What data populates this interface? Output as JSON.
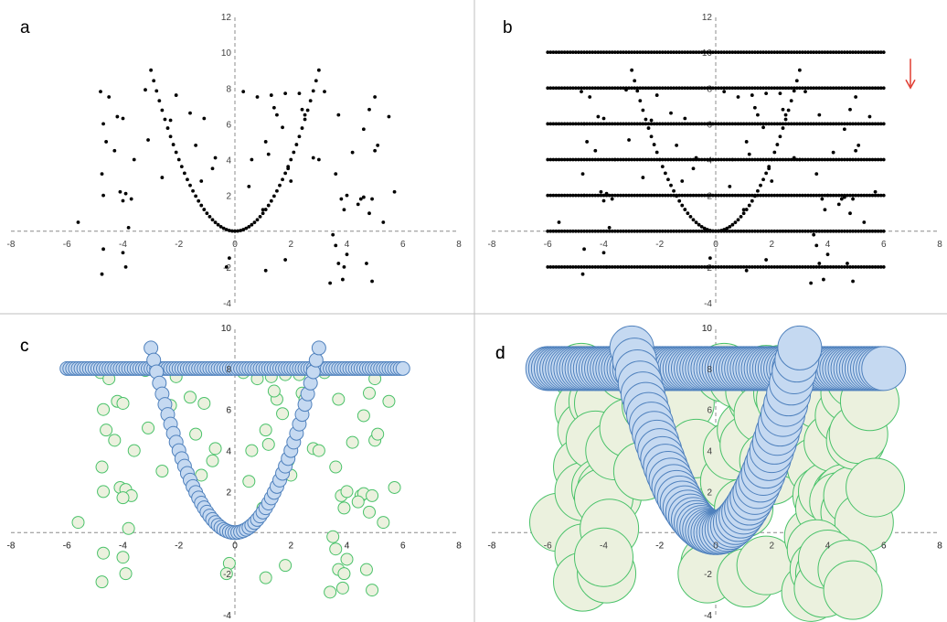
{
  "chart_data": [
    {
      "panel": "a",
      "type": "scatter",
      "xlim": [
        -8,
        8
      ],
      "ylim": [
        -4,
        12
      ],
      "xticks": [
        -8,
        -6,
        -4,
        -2,
        0,
        2,
        4,
        6,
        8
      ],
      "yticks": [
        -4,
        -2,
        0,
        2,
        4,
        6,
        8,
        10,
        12
      ],
      "marker": "small-dot",
      "colors": {
        "point": "#000000"
      },
      "series": [
        {
          "role": "parabola",
          "equation": "y = x^2",
          "x_range": [
            -3,
            3
          ],
          "points": 61
        },
        {
          "role": "random",
          "points": [
            [
              -5.6,
              0.5
            ],
            [
              -4.8,
              7.8
            ],
            [
              -4.5,
              7.5
            ],
            [
              -4.7,
              6.0
            ],
            [
              -4.6,
              5.0
            ],
            [
              -4.75,
              3.2
            ],
            [
              -4.7,
              2.0
            ],
            [
              -4.7,
              -1.0
            ],
            [
              -4.75,
              -2.4
            ],
            [
              -4.2,
              6.4
            ],
            [
              -4.0,
              6.3
            ],
            [
              -4.3,
              4.5
            ],
            [
              -4.1,
              2.2
            ],
            [
              -3.9,
              2.1
            ],
            [
              -3.7,
              1.8
            ],
            [
              -4.0,
              1.7
            ],
            [
              -3.8,
              0.2
            ],
            [
              -3.9,
              -2.0
            ],
            [
              -4.0,
              -1.2
            ],
            [
              -3.6,
              4.0
            ],
            [
              -3.2,
              7.9
            ],
            [
              -3.1,
              5.1
            ],
            [
              -2.6,
              3.0
            ],
            [
              -2.3,
              6.2
            ],
            [
              -2.1,
              7.6
            ],
            [
              -1.6,
              6.6
            ],
            [
              -1.4,
              4.8
            ],
            [
              -1.1,
              6.3
            ],
            [
              -1.2,
              2.8
            ],
            [
              -0.8,
              3.5
            ],
            [
              -0.7,
              4.1
            ],
            [
              -0.2,
              -1.5
            ],
            [
              -0.3,
              -2.0
            ],
            [
              0.3,
              7.8
            ],
            [
              0.5,
              2.5
            ],
            [
              0.6,
              4.0
            ],
            [
              0.8,
              7.5
            ],
            [
              1.0,
              1.2
            ],
            [
              1.1,
              5.0
            ],
            [
              1.2,
              4.3
            ],
            [
              1.3,
              7.6
            ],
            [
              1.5,
              6.5
            ],
            [
              1.4,
              6.9
            ],
            [
              1.8,
              7.7
            ],
            [
              1.7,
              5.8
            ],
            [
              1.9,
              3.5
            ],
            [
              2.0,
              2.8
            ],
            [
              1.1,
              -2.2
            ],
            [
              1.8,
              -1.6
            ],
            [
              2.3,
              7.7
            ],
            [
              2.4,
              6.8
            ],
            [
              2.5,
              6.5
            ],
            [
              2.8,
              4.1
            ],
            [
              3.0,
              4.0
            ],
            [
              3.2,
              7.8
            ],
            [
              3.4,
              -2.9
            ],
            [
              3.5,
              -0.2
            ],
            [
              3.6,
              3.2
            ],
            [
              3.8,
              1.8
            ],
            [
              3.9,
              1.2
            ],
            [
              4.0,
              2.0
            ],
            [
              3.7,
              6.5
            ],
            [
              4.2,
              4.4
            ],
            [
              4.5,
              1.8
            ],
            [
              4.6,
              1.9
            ],
            [
              4.4,
              1.5
            ],
            [
              4.8,
              1.0
            ],
            [
              4.9,
              1.8
            ],
            [
              4.6,
              5.7
            ],
            [
              4.8,
              6.8
            ],
            [
              5.0,
              4.5
            ],
            [
              5.1,
              4.8
            ],
            [
              5.0,
              7.5
            ],
            [
              5.3,
              0.5
            ],
            [
              5.5,
              6.4
            ],
            [
              5.7,
              2.2
            ],
            [
              3.6,
              -0.8
            ],
            [
              3.7,
              -1.8
            ],
            [
              3.9,
              -2.0
            ],
            [
              3.85,
              -2.7
            ],
            [
              4.0,
              -1.3
            ],
            [
              4.7,
              -1.8
            ],
            [
              4.9,
              -2.8
            ]
          ]
        }
      ]
    },
    {
      "panel": "b",
      "type": "scatter",
      "xlim": [
        -8,
        8
      ],
      "ylim": [
        -4,
        12
      ],
      "xticks": [
        -8,
        -6,
        -4,
        -2,
        0,
        2,
        4,
        6,
        8
      ],
      "yticks": [
        -4,
        -2,
        0,
        2,
        4,
        6,
        8,
        10,
        12
      ],
      "marker": "small-dot",
      "colors": {
        "point": "#000000",
        "arrow": "#e03c31"
      },
      "same_points_as_panel": "a",
      "horizontal_lines": {
        "y": [
          -2,
          0,
          2,
          4,
          6,
          8,
          10
        ],
        "x_range": [
          -6,
          6
        ],
        "points_per_line": 121
      },
      "annotation": {
        "type": "arrow",
        "direction": "down",
        "near_y": 8
      }
    },
    {
      "panel": "c",
      "type": "bubble",
      "xlim": [
        -8,
        8
      ],
      "ylim": [
        -4,
        10
      ],
      "xticks": [
        -8,
        -6,
        -4,
        -2,
        0,
        2,
        4,
        6,
        8
      ],
      "yticks": [
        -4,
        -2,
        0,
        2,
        4,
        6,
        8,
        10
      ],
      "same_points_as_panel": "a",
      "series": [
        {
          "role": "parabola",
          "fill": "#c5d9f1",
          "stroke": "#4f81bd"
        },
        {
          "role": "horizontal-line",
          "y": 8,
          "x_range": [
            -6,
            6
          ],
          "fill": "#c5d9f1",
          "stroke": "#4f81bd"
        },
        {
          "role": "random",
          "fill": "#ebf1de",
          "stroke": "#4ac26a"
        }
      ]
    },
    {
      "panel": "d",
      "type": "bubble",
      "xlim": [
        -8,
        8
      ],
      "ylim": [
        -4,
        10
      ],
      "xticks": [
        -8,
        -6,
        -4,
        -2,
        0,
        2,
        4,
        6,
        8
      ],
      "yticks": [
        -4,
        -2,
        0,
        2,
        4,
        6,
        8,
        10
      ],
      "same_points_as_panel": "a",
      "series": [
        {
          "role": "parabola",
          "fill": "#c5d9f1",
          "stroke": "#4f81bd"
        },
        {
          "role": "horizontal-line",
          "y": 8,
          "x_range": [
            -6,
            6
          ],
          "fill": "#c5d9f1",
          "stroke": "#4f81bd"
        },
        {
          "role": "random",
          "fill": "#ebf1de",
          "stroke": "#4ac26a"
        }
      ]
    }
  ]
}
